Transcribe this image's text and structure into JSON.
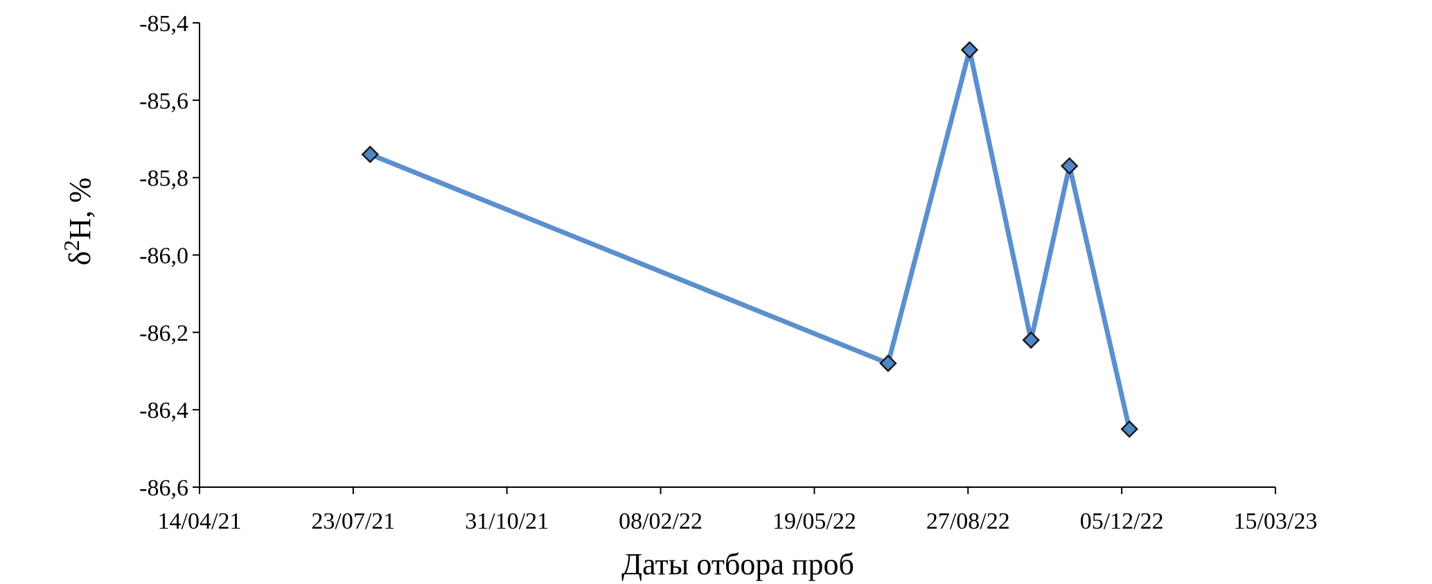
{
  "chart_data": {
    "type": "line",
    "title": "",
    "xlabel": "Даты отбора проб",
    "ylabel_main": "H, %",
    "ylabel_prefix": "δ",
    "ylabel_superscript": "2",
    "ylim": [
      -86.6,
      -85.4
    ],
    "y_ticks": [
      -85.4,
      -85.6,
      -85.8,
      -86.0,
      -86.2,
      -86.4,
      -86.6
    ],
    "y_tick_labels": [
      "-85,4",
      "-85,6",
      "-85,8",
      "-86,0",
      "-86,2",
      "-86,4",
      "-86,6"
    ],
    "xlim": [
      "2021-04-14",
      "2023-03-15"
    ],
    "x_ticks": [
      "2021-04-14",
      "2021-07-23",
      "2021-10-31",
      "2022-02-08",
      "2022-05-19",
      "2022-08-27",
      "2022-12-05",
      "2023-03-15"
    ],
    "x_tick_labels": [
      "14/04/21",
      "23/07/21",
      "31/10/21",
      "08/02/22",
      "19/05/22",
      "27/08/22",
      "05/12/22",
      "15/03/23"
    ],
    "series": [
      {
        "x": [
          "2021-08-03",
          "2022-07-06",
          "2022-08-28",
          "2022-10-07",
          "2022-11-01",
          "2022-12-10"
        ],
        "y": [
          -85.74,
          -86.28,
          -85.47,
          -86.22,
          -85.77,
          -86.45
        ]
      }
    ],
    "colors": {
      "line": "#5b8fce",
      "marker_fill": "#4f86c6",
      "marker_stroke": "#1a1a1a",
      "axis": "#000000"
    },
    "grid": false,
    "legend": "none"
  }
}
